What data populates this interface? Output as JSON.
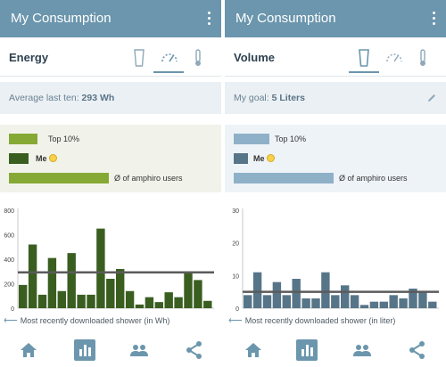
{
  "colors": {
    "accent": "#6b96ad",
    "energy_bar": "#3a5e20",
    "energy_light": "#86a935",
    "volume_bar": "#577588",
    "volume_light": "#8fb1c8",
    "reference_line": "#5b5b5b"
  },
  "energy_panel": {
    "app_title": "My Consumption",
    "heading": "Energy",
    "tabs": [
      {
        "icon": "glass-icon",
        "active": false
      },
      {
        "icon": "gauge-icon",
        "active": true
      },
      {
        "icon": "thermometer-icon",
        "active": false
      }
    ],
    "info_label": "Average last ten:",
    "info_value": "293 Wh",
    "legend": [
      {
        "label": "Top 10%",
        "bold": false
      },
      {
        "label": "Me",
        "bold": true
      },
      {
        "label": "Ø of amphiro users",
        "bold": false
      }
    ],
    "caption": "Most recently downloaded shower (in Wh)",
    "nav": [
      "home-icon",
      "chart-icon",
      "people-icon",
      "share-icon"
    ]
  },
  "volume_panel": {
    "app_title": "My Consumption",
    "heading": "Volume",
    "tabs": [
      {
        "icon": "glass-icon",
        "active": true
      },
      {
        "icon": "gauge-icon",
        "active": false
      },
      {
        "icon": "thermometer-icon",
        "active": false
      }
    ],
    "info_label": "My goal:",
    "info_value": "5 Liters",
    "legend": [
      {
        "label": "Top 10%",
        "bold": false
      },
      {
        "label": "Me",
        "bold": true
      },
      {
        "label": "Ø of amphiro users",
        "bold": false
      }
    ],
    "caption": "Most recently downloaded shower (in liter)",
    "nav": [
      "home-icon",
      "chart-icon",
      "people-icon",
      "share-icon"
    ]
  },
  "chart_data": [
    {
      "type": "bar",
      "title": "Energy",
      "ylim": [
        0,
        800
      ],
      "yticks": [
        0,
        200,
        400,
        600,
        800
      ],
      "values": [
        190,
        520,
        110,
        410,
        140,
        450,
        110,
        110,
        650,
        240,
        320,
        140,
        30,
        90,
        50,
        130,
        90,
        290,
        230,
        60
      ],
      "reference_line": 293,
      "xlabel": "Most recently downloaded shower (in Wh)"
    },
    {
      "type": "bar",
      "title": "Volume",
      "ylim": [
        0,
        30
      ],
      "yticks": [
        0,
        10,
        20,
        30
      ],
      "values": [
        4,
        11,
        4,
        8,
        4,
        9,
        3,
        3,
        11,
        4,
        7,
        4,
        1,
        2,
        2,
        4,
        3,
        6,
        5,
        2
      ],
      "reference_line": 5,
      "xlabel": "Most recently downloaded shower (in liter)"
    }
  ]
}
